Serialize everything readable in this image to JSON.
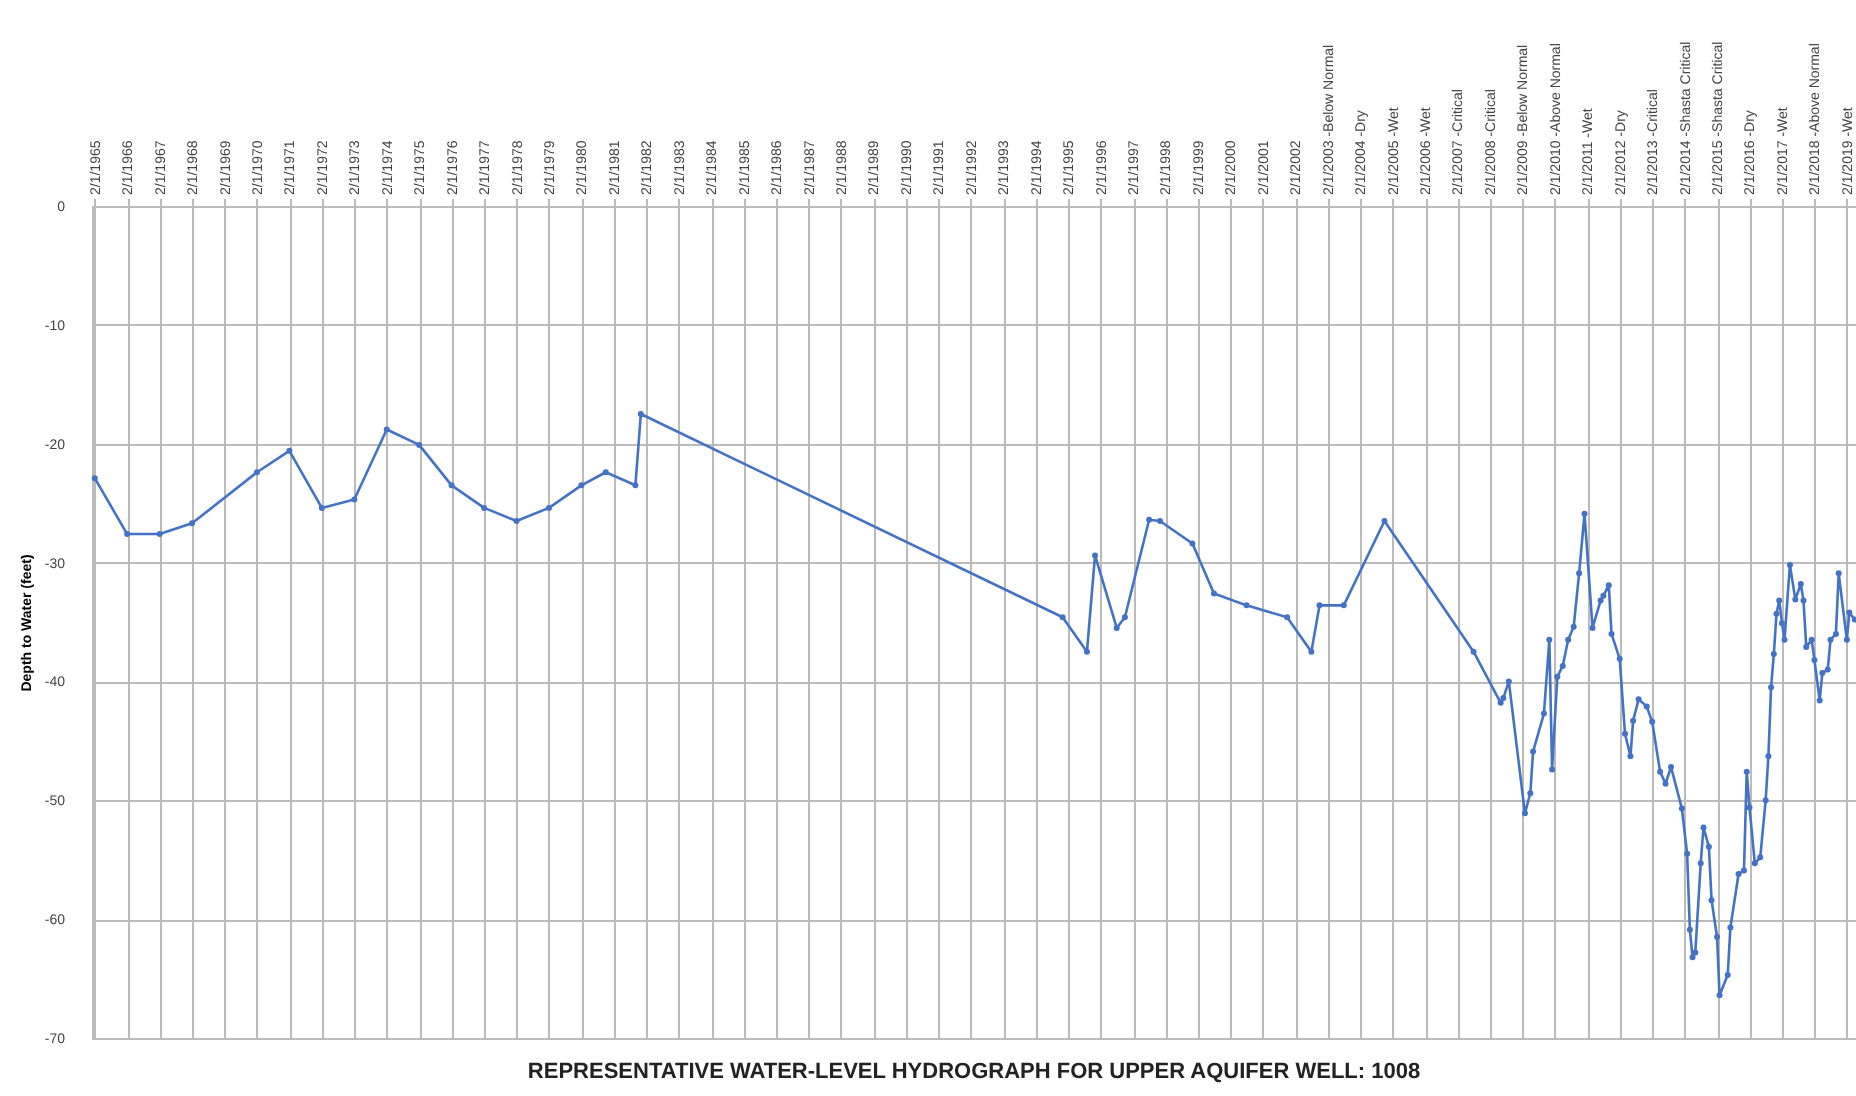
{
  "chart_data": {
    "type": "line",
    "title": "REPRESENTATIVE WATER-LEVEL HYDROGRAPH FOR UPPER AQUIFER WELL: 1008",
    "ylabel": "Depth to Water (feet)",
    "x": [
      "1965-02",
      "1966-02",
      "1967-02",
      "1968-02",
      "1970-02",
      "1971-02",
      "1972-02",
      "1973-02",
      "1974-02",
      "1975-02",
      "1976-02",
      "1977-02",
      "1978-02",
      "1979-02",
      "1980-02",
      "1980-11",
      "1981-10",
      "1981-12",
      "1994-12",
      "1995-09",
      "1995-12",
      "1996-08",
      "1996-11",
      "1997-08",
      "1997-12",
      "1998-12",
      "1999-08",
      "2000-08",
      "2001-11",
      "2002-08",
      "2002-11",
      "2003-08",
      "2004-11",
      "2007-08",
      "2008-06",
      "2008-07",
      "2008-09",
      "2009-03",
      "2009-05",
      "2009-06",
      "2009-10",
      "2009-12",
      "2010-01",
      "2010-03",
      "2010-05",
      "2010-07",
      "2010-09",
      "2010-11",
      "2011-01",
      "2011-04",
      "2011-07",
      "2011-08",
      "2011-10",
      "2011-11",
      "2012-02",
      "2012-04",
      "2012-06",
      "2012-07",
      "2012-09",
      "2012-12",
      "2013-02",
      "2013-05",
      "2013-07",
      "2013-09",
      "2014-01",
      "2014-03",
      "2014-04",
      "2014-05",
      "2014-06",
      "2014-08",
      "2014-09",
      "2014-11",
      "2014-12",
      "2015-02",
      "2015-03",
      "2015-06",
      "2015-07",
      "2015-10",
      "2015-12",
      "2016-01",
      "2016-02",
      "2016-04",
      "2016-06",
      "2016-08",
      "2016-09",
      "2016-10",
      "2016-11",
      "2016-12",
      "2017-01",
      "2017-02",
      "2017-03",
      "2017-05",
      "2017-07",
      "2017-09",
      "2017-10",
      "2017-11",
      "2018-01",
      "2018-02",
      "2018-04",
      "2018-05",
      "2018-07",
      "2018-08",
      "2018-10",
      "2018-11",
      "2019-02",
      "2019-03",
      "2019-05"
    ],
    "series": [
      {
        "color": "#4472c4",
        "values": [
          -22.9,
          -27.6,
          -27.6,
          -26.7,
          -22.4,
          -20.6,
          -25.4,
          -24.7,
          -18.8,
          -20.1,
          -23.5,
          -25.4,
          -26.5,
          -25.4,
          -23.5,
          -22.4,
          -23.5,
          -17.5,
          -34.6,
          -37.5,
          -29.4,
          -35.5,
          -34.6,
          -26.4,
          -26.5,
          -28.4,
          -32.6,
          -33.6,
          -34.6,
          -37.5,
          -33.6,
          -33.6,
          -26.5,
          -37.5,
          -41.8,
          -41.4,
          -40.0,
          -51.1,
          -49.4,
          -45.9,
          -42.7,
          -36.5,
          -47.4,
          -39.6,
          -38.7,
          -36.5,
          -35.4,
          -30.9,
          -25.9,
          -35.5,
          -33.2,
          -32.8,
          -31.9,
          -36.0,
          -38.1,
          -44.4,
          -46.3,
          -43.3,
          -41.5,
          -42.1,
          -43.4,
          -47.6,
          -48.6,
          -47.2,
          -50.7,
          -54.5,
          -60.9,
          -63.2,
          -62.8,
          -55.3,
          -52.3,
          -53.9,
          -58.4,
          -61.5,
          -66.4,
          -64.7,
          -60.7,
          -56.2,
          -55.9,
          -47.6,
          -50.6,
          -55.3,
          -54.8,
          -50.0,
          -46.3,
          -40.5,
          -37.7,
          -34.3,
          -33.2,
          -35.1,
          -36.5,
          -30.2,
          -33.1,
          -31.8,
          -33.2,
          -37.1,
          -36.5,
          -38.2,
          -41.6,
          -39.3,
          -39.0,
          -36.5,
          -36.0,
          -30.9,
          -36.5,
          -34.2,
          -34.8
        ]
      }
    ],
    "xlim": [
      "1965-01-01",
      "2019-05-15"
    ],
    "xticks": [
      {
        "value": "1965-02-01",
        "label": "2/1/1965"
      },
      {
        "value": "1966-02-01",
        "label": "2/1/1966"
      },
      {
        "value": "1967-02-01",
        "label": "2/1/1967"
      },
      {
        "value": "1968-02-01",
        "label": "2/1/1968"
      },
      {
        "value": "1969-02-01",
        "label": "2/1/1969"
      },
      {
        "value": "1970-02-01",
        "label": "2/1/1970"
      },
      {
        "value": "1971-02-01",
        "label": "2/1/1971"
      },
      {
        "value": "1972-02-01",
        "label": "2/1/1972"
      },
      {
        "value": "1973-02-01",
        "label": "2/1/1973"
      },
      {
        "value": "1974-02-01",
        "label": "2/1/1974"
      },
      {
        "value": "1975-02-01",
        "label": "2/1/1975"
      },
      {
        "value": "1976-02-01",
        "label": "2/1/1976"
      },
      {
        "value": "1977-02-01",
        "label": "2/1/1977"
      },
      {
        "value": "1978-02-01",
        "label": "2/1/1978"
      },
      {
        "value": "1979-02-01",
        "label": "2/1/1979"
      },
      {
        "value": "1980-02-01",
        "label": "2/1/1980"
      },
      {
        "value": "1981-02-01",
        "label": "2/1/1981"
      },
      {
        "value": "1982-02-01",
        "label": "2/1/1982"
      },
      {
        "value": "1983-02-01",
        "label": "2/1/1983"
      },
      {
        "value": "1984-02-01",
        "label": "2/1/1984"
      },
      {
        "value": "1985-02-01",
        "label": "2/1/1985"
      },
      {
        "value": "1986-02-01",
        "label": "2/1/1986"
      },
      {
        "value": "1987-02-01",
        "label": "2/1/1987"
      },
      {
        "value": "1988-02-01",
        "label": "2/1/1988"
      },
      {
        "value": "1989-02-01",
        "label": "2/1/1989"
      },
      {
        "value": "1990-02-01",
        "label": "2/1/1990"
      },
      {
        "value": "1991-02-01",
        "label": "2/1/1991"
      },
      {
        "value": "1992-02-01",
        "label": "2/1/1992"
      },
      {
        "value": "1993-02-01",
        "label": "2/1/1993"
      },
      {
        "value": "1994-02-01",
        "label": "2/1/1994"
      },
      {
        "value": "1995-02-01",
        "label": "2/1/1995"
      },
      {
        "value": "1996-02-01",
        "label": "2/1/1996"
      },
      {
        "value": "1997-02-01",
        "label": "2/1/1997"
      },
      {
        "value": "1998-02-01",
        "label": "2/1/1998"
      },
      {
        "value": "1999-02-01",
        "label": "2/1/1999"
      },
      {
        "value": "2000-02-01",
        "label": "2/1/2000"
      },
      {
        "value": "2001-02-01",
        "label": "2/1/2001"
      },
      {
        "value": "2002-02-01",
        "label": "2/1/2002"
      },
      {
        "value": "2003-02-01",
        "label": "2/1/2003 -Below Normal"
      },
      {
        "value": "2004-02-01",
        "label": "2/1/2004 -Dry"
      },
      {
        "value": "2005-02-01",
        "label": "2/1/2005 -Wet"
      },
      {
        "value": "2006-02-01",
        "label": "2/1/2006 -Wet"
      },
      {
        "value": "2007-02-01",
        "label": "2/1/2007 -Critical"
      },
      {
        "value": "2008-02-01",
        "label": "2/1/2008 -Critical"
      },
      {
        "value": "2009-02-01",
        "label": "2/1/2009 -Below Normal"
      },
      {
        "value": "2010-02-01",
        "label": "2/1/2010 -Above Normal"
      },
      {
        "value": "2011-02-01",
        "label": "2/1/2011 -Wet"
      },
      {
        "value": "2012-02-01",
        "label": "2/1/2012 -Dry"
      },
      {
        "value": "2013-02-01",
        "label": "2/1/2013 -Critical"
      },
      {
        "value": "2014-02-01",
        "label": "2/1/2014 -Shasta Critical"
      },
      {
        "value": "2015-02-01",
        "label": "2/1/2015 -Shasta Critical"
      },
      {
        "value": "2016-02-01",
        "label": "2/1/2016 -Dry"
      },
      {
        "value": "2017-02-01",
        "label": "2/1/2017 -Wet"
      },
      {
        "value": "2018-02-01",
        "label": "2/1/2018 -Above Normal"
      },
      {
        "value": "2019-02-01",
        "label": "2/1/2019 -Wet"
      }
    ],
    "ylim": [
      -70,
      0
    ],
    "yticks": [
      0,
      -10,
      -20,
      -30,
      -40,
      -50,
      -60,
      -70
    ],
    "grid": true,
    "marker": "circle",
    "line_style": "solid"
  }
}
